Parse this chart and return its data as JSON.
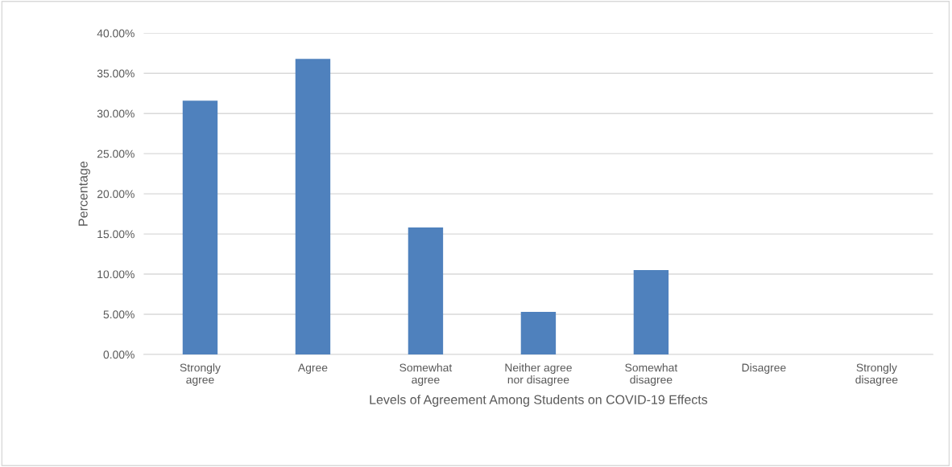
{
  "chart_data": {
    "type": "bar",
    "xlabel": "Levels of Agreement Among Students on COVID-19 Effects",
    "ylabel": "Percentage",
    "categories": [
      "Strongly\nagree",
      "Agree",
      "Somewhat\nagree",
      "Neither agree\nnor disagree",
      "Somewhat\ndisagree",
      "Disagree",
      "Strongly\ndisagree"
    ],
    "values": [
      31.6,
      36.8,
      15.8,
      5.3,
      10.5,
      0,
      0
    ],
    "color": "#4f81bd",
    "ylim": [
      0,
      40
    ],
    "yticks": [
      {
        "value": 0,
        "label": "0.00%"
      },
      {
        "value": 5,
        "label": "5.00%"
      },
      {
        "value": 10,
        "label": "10.00%"
      },
      {
        "value": 15,
        "label": "15.00%"
      },
      {
        "value": 20,
        "label": "20.00%"
      },
      {
        "value": 25,
        "label": "25.00%"
      },
      {
        "value": 30,
        "label": "30.00%"
      },
      {
        "value": 35,
        "label": "35.00%"
      },
      {
        "value": 40,
        "label": "40.00%"
      }
    ],
    "grid": "y",
    "legend": false
  }
}
